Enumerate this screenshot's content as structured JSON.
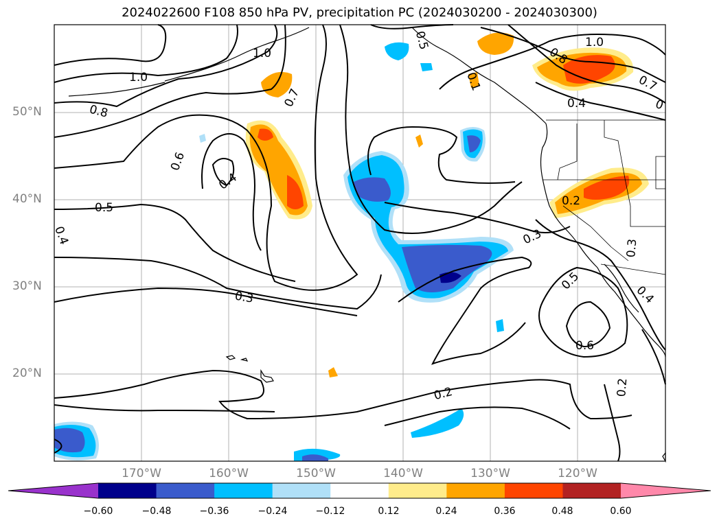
{
  "title": "2024022600 F108 850 hPa PV, precipitation PC (2024030200 - 2024030300)",
  "lat_labels": [
    "50°N",
    "40°N",
    "30°N",
    "20°N"
  ],
  "lon_labels": [
    "170°W",
    "160°W",
    "150°W",
    "140°W",
    "130°W",
    "120°W"
  ],
  "contour_labels": [
    "1.0",
    "1.0",
    "1.0",
    "0.8",
    "0.8",
    "0.7",
    "0.7",
    "0.6",
    "0.4",
    "0.4",
    "0.5",
    "0.4",
    "0.3",
    "0.3",
    "0.2",
    "0.2",
    "0.5",
    "0.3",
    "0.4",
    "0.6",
    "0.2",
    "0.5",
    "0.1",
    "0"
  ],
  "colorbar": {
    "ticks": [
      "−0.60",
      "−0.48",
      "−0.36",
      "−0.24",
      "−0.12",
      "0.12",
      "0.24",
      "0.36",
      "0.48",
      "0.60"
    ],
    "colors": [
      "#9932cc",
      "#00008b",
      "#3a5bcc",
      "#00bfff",
      "#b0e0f8",
      "#ffffff",
      "#ffec8b",
      "#ffa500",
      "#ff4500",
      "#b22222",
      "#ff88aa"
    ]
  }
}
